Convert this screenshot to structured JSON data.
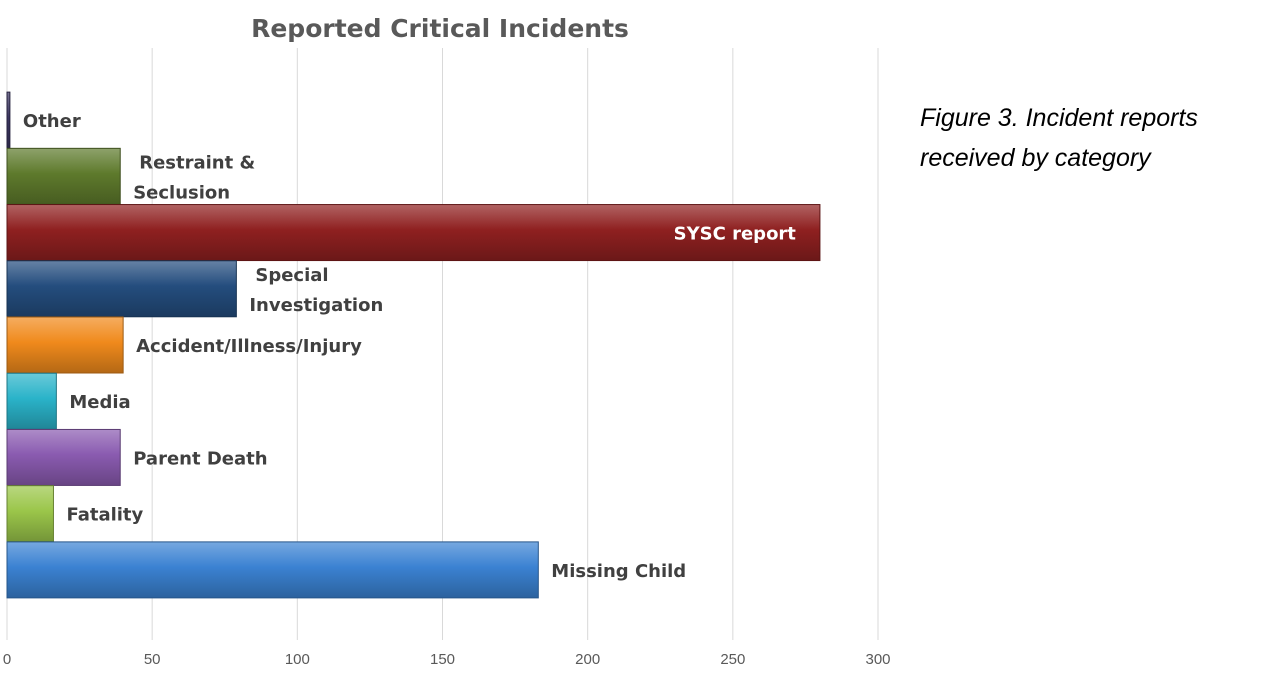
{
  "caption": "Figure 3. Incident reports received by category",
  "chart_data": {
    "type": "bar",
    "orientation": "horizontal",
    "title": "Reported Critical Incidents",
    "xlabel": "",
    "ylabel": "",
    "xlim": [
      0,
      300
    ],
    "xticks": [
      0,
      50,
      100,
      150,
      200,
      250,
      300
    ],
    "grid": "vertical",
    "legend": "none",
    "categories": [
      "Other",
      "Restraint & Seclusion",
      "SYSC report",
      "Special Investigation",
      "Accident/Illness/Injury",
      "Media",
      "Parent Death",
      "Fatality",
      "Missing Child"
    ],
    "label_lines": [
      [
        "Other"
      ],
      [
        "Restraint &",
        "Seclusion"
      ],
      [
        "SYSC report"
      ],
      [
        "Special",
        "Investigation"
      ],
      [
        "Accident/Illness/Injury"
      ],
      [
        "Media"
      ],
      [
        "Parent Death"
      ],
      [
        "Fatality"
      ],
      [
        "Missing Child"
      ]
    ],
    "values": [
      1,
      39,
      280,
      79,
      40,
      17,
      39,
      16,
      183
    ],
    "colors": [
      "#3b3560",
      "#5e7a2c",
      "#8f2020",
      "#244d7e",
      "#f08a1c",
      "#2ab3c9",
      "#8a5bb0",
      "#9bc64a",
      "#3b82d2"
    ],
    "label_inside": [
      false,
      false,
      true,
      false,
      false,
      false,
      false,
      false,
      false
    ]
  }
}
